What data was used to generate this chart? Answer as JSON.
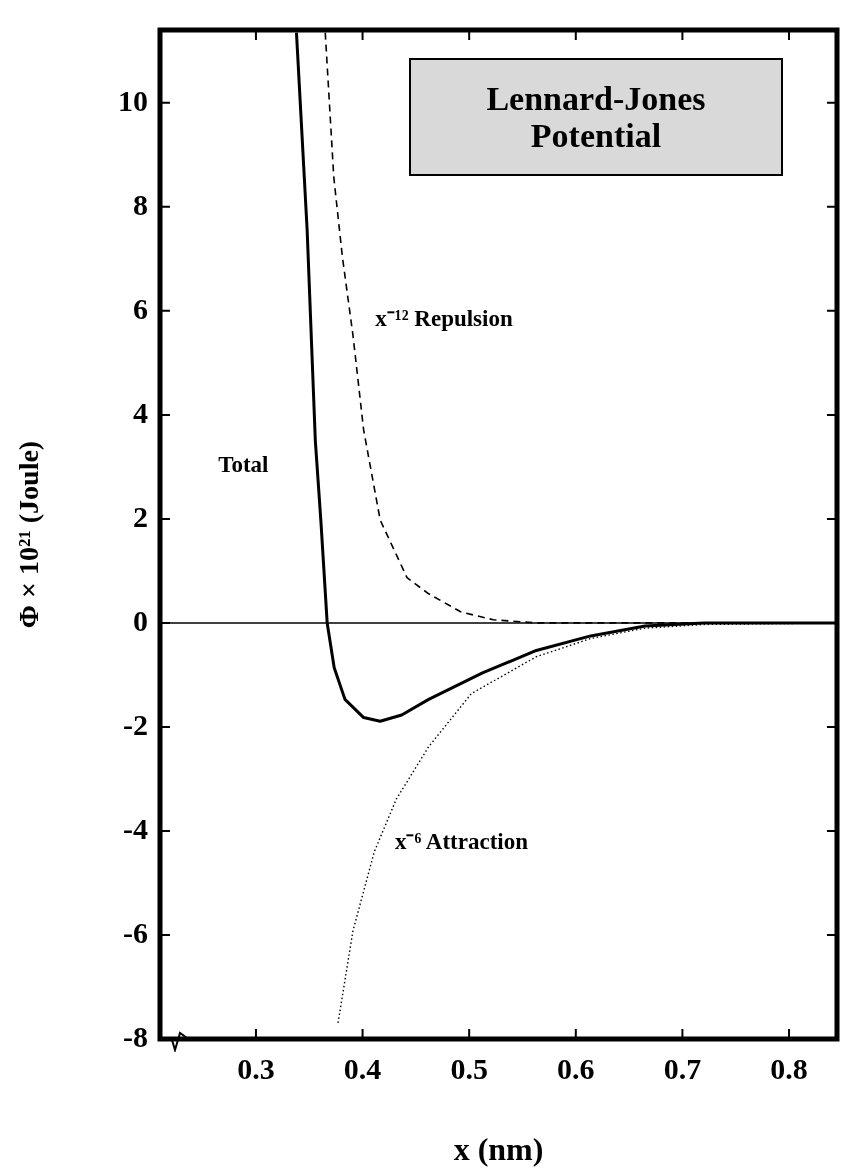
{
  "chart_data": {
    "type": "line",
    "title": "Lennard-Jones Potential",
    "xlabel": "x (nm)",
    "ylabel": "Φ × 10²¹ (Joule)",
    "xlim": [
      0.21,
      0.845
    ],
    "ylim": [
      -8,
      11.4
    ],
    "xticks": [
      0.3,
      0.4,
      0.5,
      0.6,
      0.7,
      0.8
    ],
    "yticks": [
      -8,
      -6,
      -4,
      -2,
      0,
      2,
      4,
      6,
      8,
      10
    ],
    "marker": "none",
    "legend": false,
    "grid": false,
    "ref_lines": [
      {
        "axis": "y",
        "value": 0,
        "color": "#000000"
      }
    ],
    "series": [
      {
        "name": "Total",
        "color": "#000000",
        "line_style": "solid",
        "x": [
          0.338,
          0.348,
          0.3557,
          0.361,
          0.3668,
          0.3734,
          0.3835,
          0.401,
          0.4165,
          0.4367,
          0.462,
          0.5125,
          0.563,
          0.614,
          0.665,
          0.72,
          0.845
        ],
        "values": [
          11.35,
          7.56,
          3.5,
          1.93,
          0,
          -0.86,
          -1.47,
          -1.82,
          -1.89,
          -1.77,
          -1.47,
          -0.96,
          -0.53,
          -0.25,
          -0.06,
          0,
          0
        ]
      },
      {
        "name": "x⁻¹² Repulsion",
        "color": "#000000",
        "line_style": "dashed",
        "x": [
          0.365,
          0.373,
          0.381,
          0.391,
          0.401,
          0.4165,
          0.4417,
          0.462,
          0.4924,
          0.5227,
          0.563,
          0.845
        ],
        "values": [
          11.35,
          8.57,
          7.05,
          5.53,
          3.71,
          1.98,
          0.87,
          0.56,
          0.21,
          0.06,
          0,
          0
        ]
      },
      {
        "name": "x⁻⁶ Attraction",
        "color": "#000000",
        "line_style": "dotted",
        "x": [
          0.377,
          0.391,
          0.411,
          0.4316,
          0.462,
          0.502,
          0.563,
          0.614,
          0.665,
          0.72,
          0.845
        ],
        "values": [
          -7.69,
          -5.92,
          -4.4,
          -3.39,
          -2.38,
          -1.36,
          -0.65,
          -0.3,
          -0.1,
          -0.03,
          0
        ]
      }
    ]
  }
}
